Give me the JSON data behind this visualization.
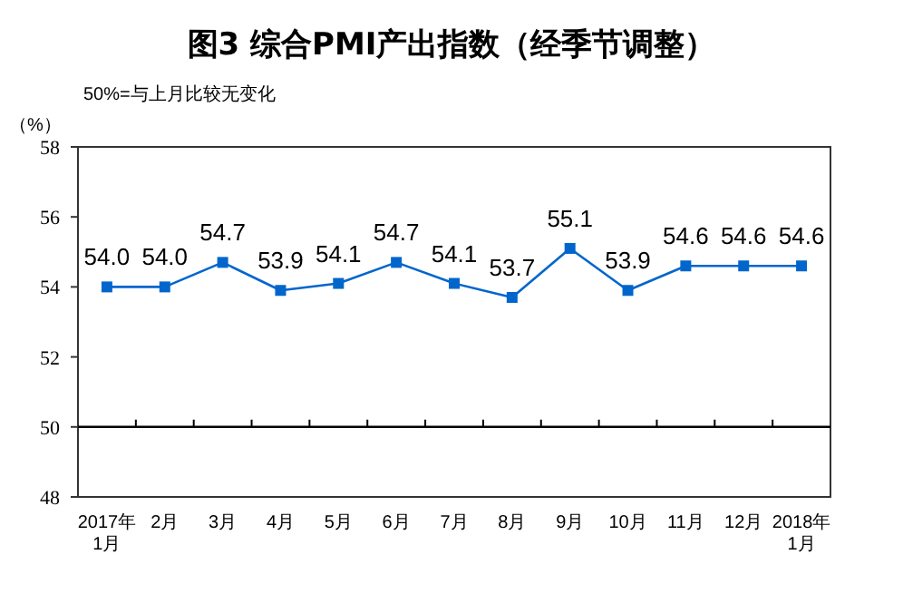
{
  "chart_data": {
    "type": "line",
    "title": "图3 综合PMI产出指数（经季节调整）",
    "ylabel": "（%）",
    "annotations": [
      "50%=与上月比较无变化"
    ],
    "categories": [
      "2017年\n1月",
      "2月",
      "3月",
      "4月",
      "5月",
      "6月",
      "7月",
      "8月",
      "9月",
      "10月",
      "11月",
      "12月",
      "2018年\n1月"
    ],
    "series": [
      {
        "color": "#0066cc",
        "values": [
          54.0,
          54.0,
          54.7,
          53.9,
          54.1,
          54.7,
          54.1,
          53.7,
          55.1,
          53.9,
          54.6,
          54.6,
          54.6
        ],
        "value_labels": [
          "54.0",
          "54.0",
          "54.7",
          "53.9",
          "54.1",
          "54.7",
          "54.1",
          "53.7",
          "55.1",
          "53.9",
          "54.6",
          "54.6",
          "54.6"
        ]
      }
    ],
    "ylim": [
      48,
      58
    ],
    "yticks": [
      48,
      50,
      52,
      54,
      56,
      58
    ],
    "marker": "square",
    "grid": false,
    "ref_lines": [
      {
        "axis": "y",
        "value": 50,
        "color": "#000000"
      }
    ]
  }
}
